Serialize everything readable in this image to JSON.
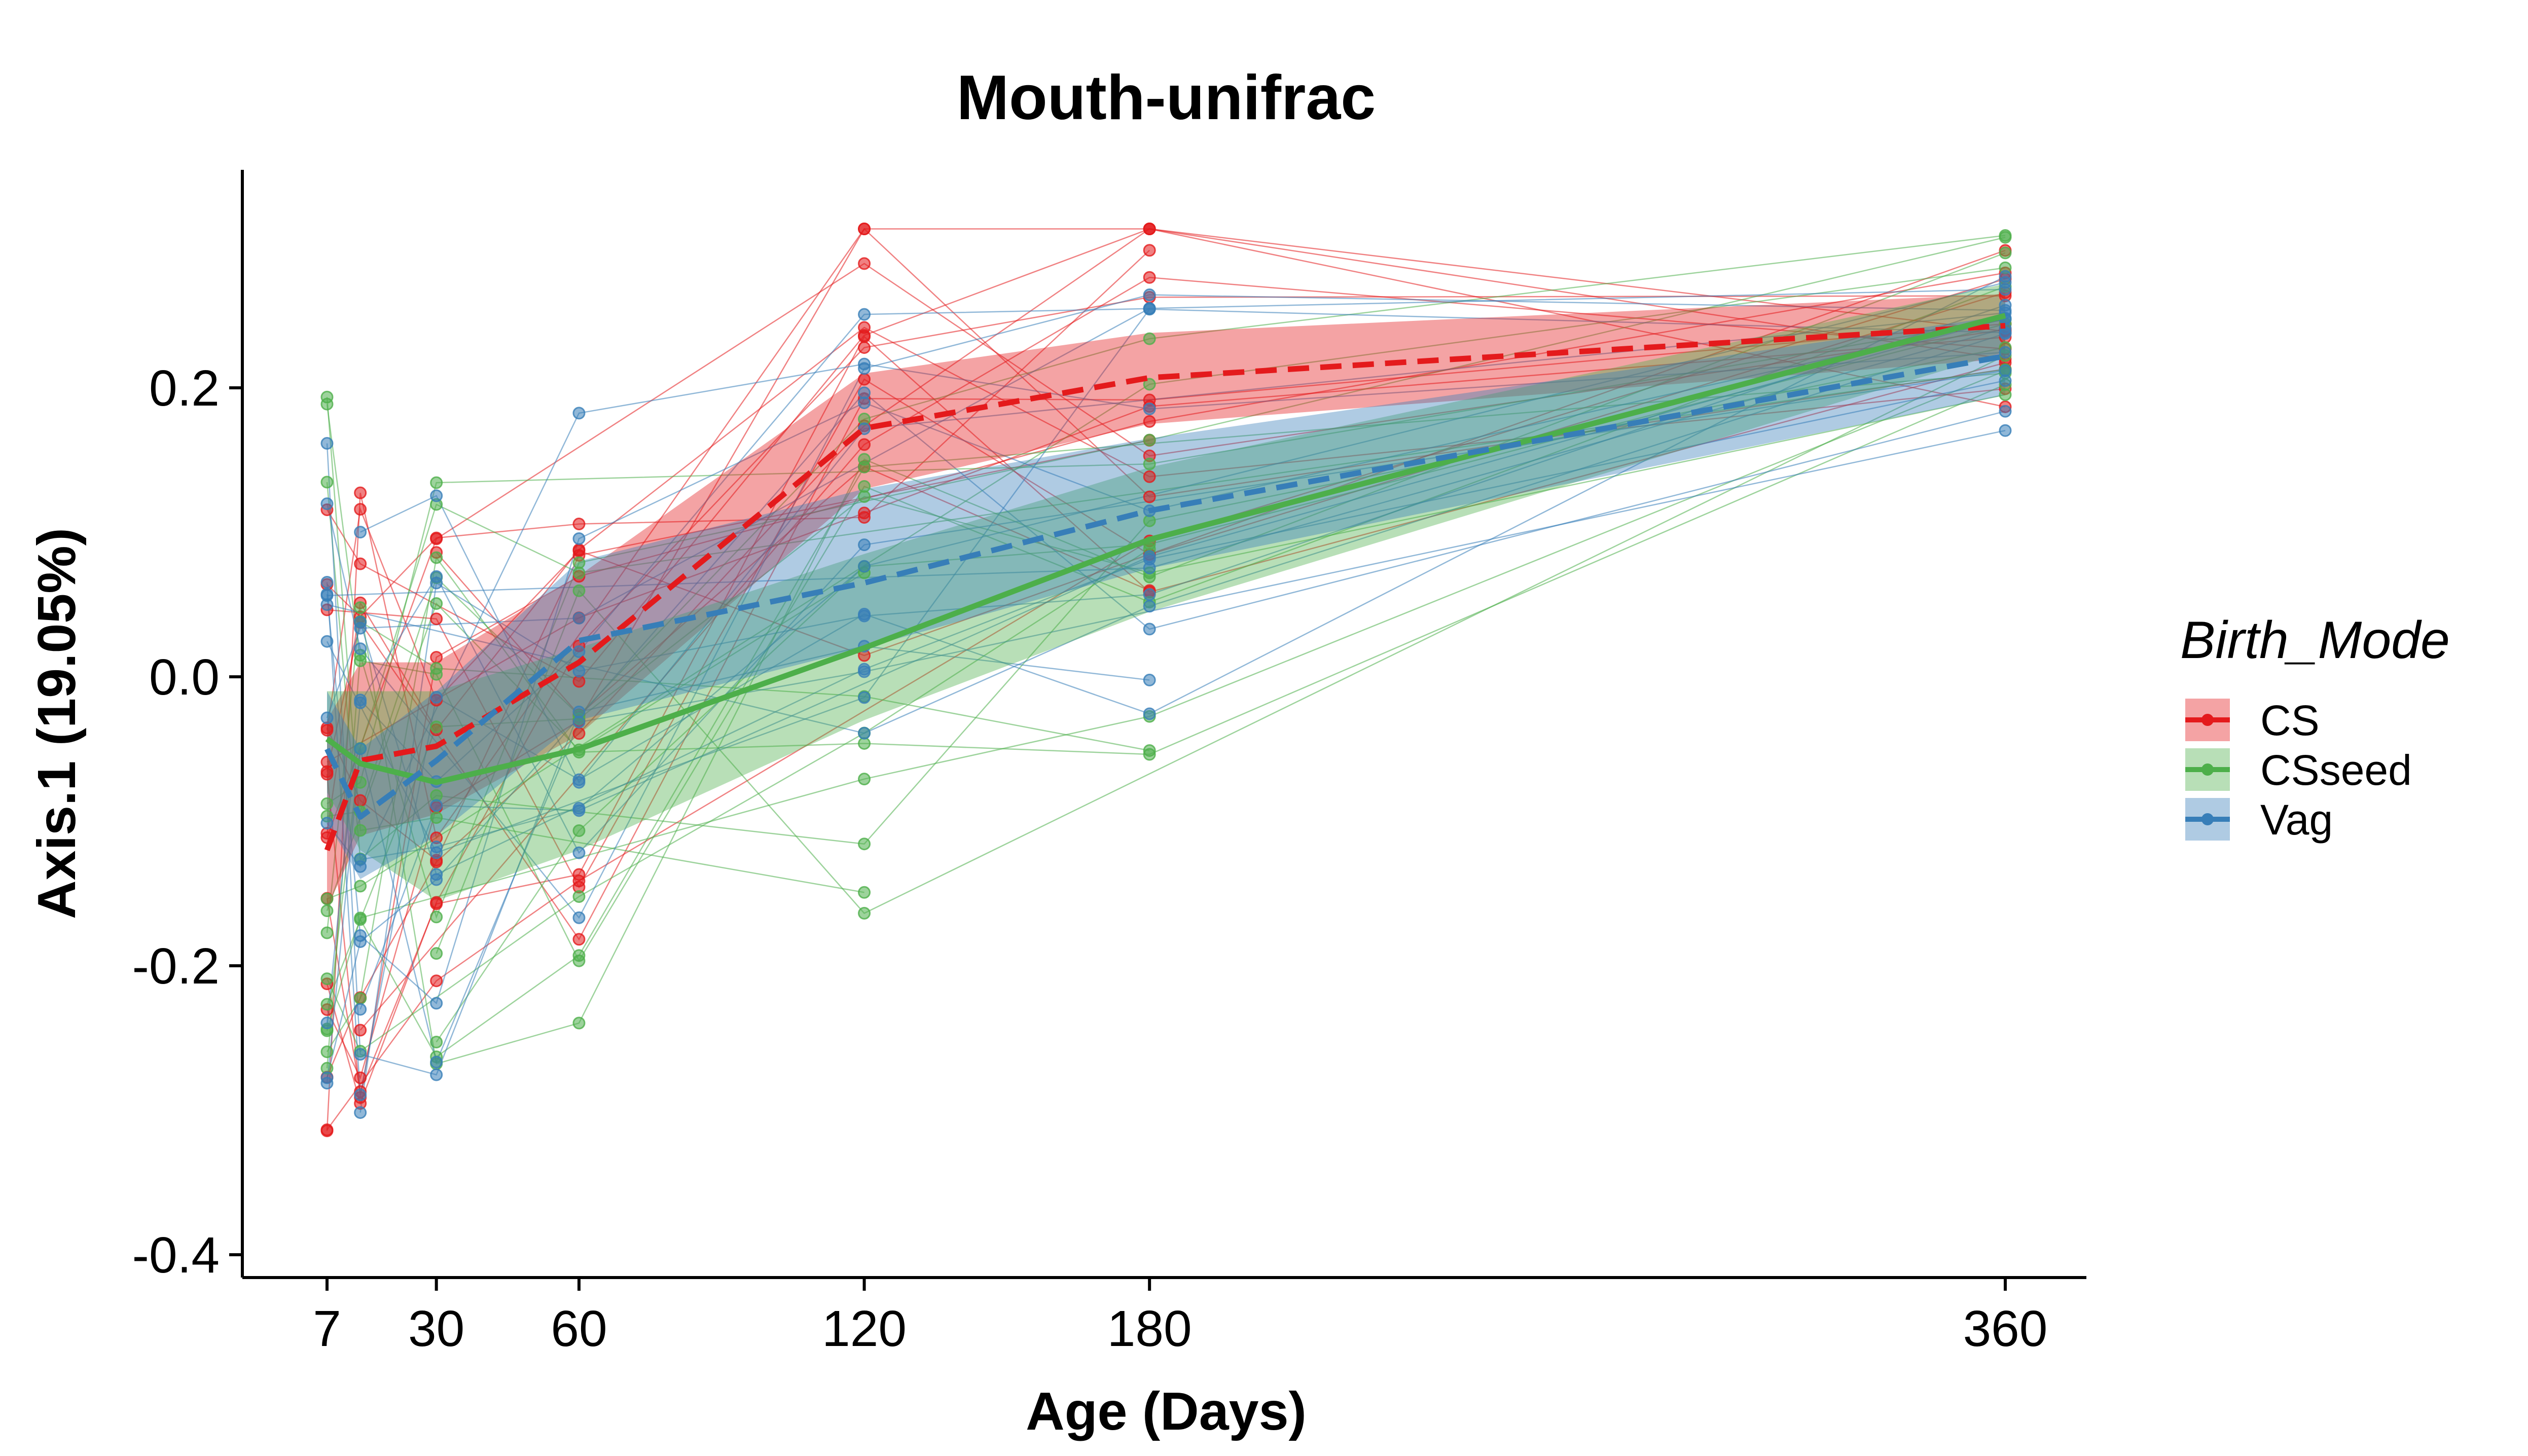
{
  "chart_data": {
    "type": "line",
    "title": "Mouth-unifrac",
    "xlabel": "Age (Days)",
    "ylabel": "Axis.1 (19.05%)",
    "x_ticks": [
      7,
      30,
      60,
      120,
      180,
      360
    ],
    "x_tick_labels": [
      "7",
      "30",
      "60",
      "120",
      "180",
      "360"
    ],
    "y_ticks": [
      -0.4,
      -0.2,
      0.0,
      0.2
    ],
    "y_tick_labels": [
      "-0.4",
      "-0.2",
      "0.0",
      "0.2"
    ],
    "xlim": [
      -9,
      377
    ],
    "ylim": [
      -0.42,
      0.35
    ],
    "x_sample_days": [
      7,
      14,
      30,
      60,
      120,
      180,
      360
    ],
    "grid": false,
    "legend": {
      "title": "Birth_Mode",
      "position": "right"
    },
    "series": [
      {
        "name": "CS",
        "color": "#E41A1C",
        "dash": "dashed",
        "x": [
          7,
          14,
          30,
          60,
          120,
          180,
          360
        ],
        "mean": [
          -0.12,
          -0.058,
          -0.048,
          0.01,
          0.172,
          0.207,
          0.243
        ],
        "lower": [
          -0.16,
          -0.11,
          -0.095,
          -0.04,
          0.13,
          0.175,
          0.22
        ],
        "upper": [
          -0.03,
          0.01,
          0.01,
          0.07,
          0.21,
          0.238,
          0.265
        ]
      },
      {
        "name": "CSseed",
        "color": "#4DAF4A",
        "dash": "solid",
        "x": [
          7,
          14,
          30,
          60,
          120,
          180,
          360
        ],
        "mean": [
          -0.043,
          -0.06,
          -0.073,
          -0.05,
          0.02,
          0.095,
          0.25
        ],
        "lower": [
          -0.08,
          -0.12,
          -0.155,
          -0.12,
          -0.03,
          0.045,
          0.225
        ],
        "upper": [
          -0.01,
          -0.01,
          -0.01,
          0.02,
          0.085,
          0.145,
          0.272
        ]
      },
      {
        "name": "Vag",
        "color": "#377EB8",
        "dash": "dashed",
        "x": [
          7,
          14,
          30,
          60,
          120,
          180,
          360
        ],
        "mean": [
          -0.05,
          -0.097,
          -0.058,
          0.025,
          0.065,
          0.115,
          0.222
        ],
        "lower": [
          -0.1,
          -0.14,
          -0.11,
          -0.03,
          0.02,
          0.075,
          0.195
        ],
        "upper": [
          -0.01,
          -0.05,
          -0.01,
          0.08,
          0.13,
          0.165,
          0.25
        ]
      }
    ]
  }
}
